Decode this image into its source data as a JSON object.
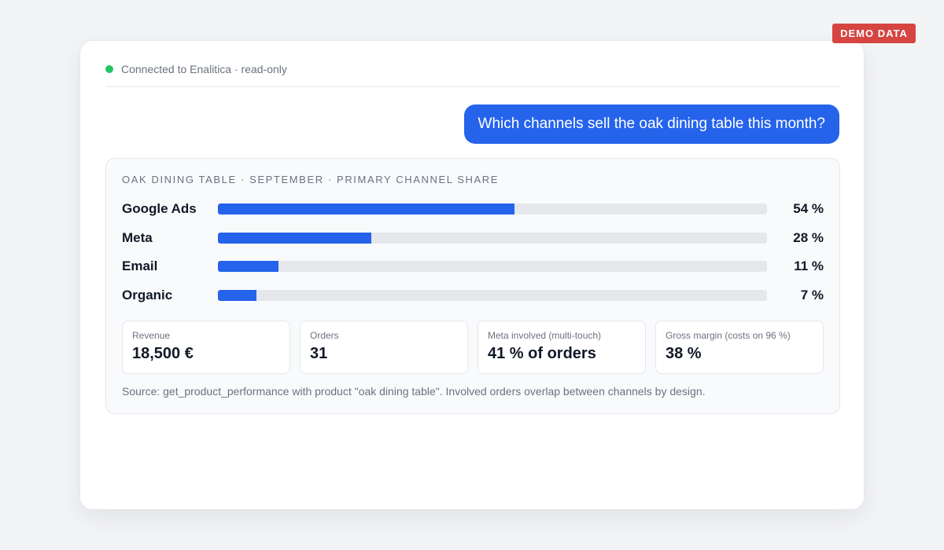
{
  "badge": "DEMO DATA",
  "connection": {
    "text": "Connected to Enalitica · read-only",
    "status_color": "#22c55e"
  },
  "message": {
    "text": "Which channels sell the oak dining table this month?"
  },
  "card": {
    "title": "OAK DINING TABLE · SEPTEMBER · PRIMARY CHANNEL SHARE",
    "source": "Source: get_product_performance with product \"oak dining table\". Involved orders overlap between channels by design."
  },
  "chart_data": {
    "type": "bar",
    "categories": [
      "Google Ads",
      "Meta",
      "Email",
      "Organic"
    ],
    "values": [
      54,
      28,
      11,
      7
    ],
    "value_labels": [
      "54 %",
      "28 %",
      "11 %",
      "7 %"
    ],
    "title": "OAK DINING TABLE · SEPTEMBER · PRIMARY CHANNEL SHARE",
    "xlabel": "",
    "ylabel": "",
    "ylim": [
      0,
      100
    ],
    "grid": false
  },
  "stats": [
    {
      "label": "Revenue",
      "value": "18,500 €"
    },
    {
      "label": "Orders",
      "value": "31"
    },
    {
      "label": "Meta involved (multi-touch)",
      "value": "41 % of orders"
    },
    {
      "label": "Gross margin (costs on 96 %)",
      "value": "38 %"
    }
  ],
  "colors": {
    "accent": "#2563eb",
    "badge": "#d64541",
    "track": "#e5e7eb"
  }
}
